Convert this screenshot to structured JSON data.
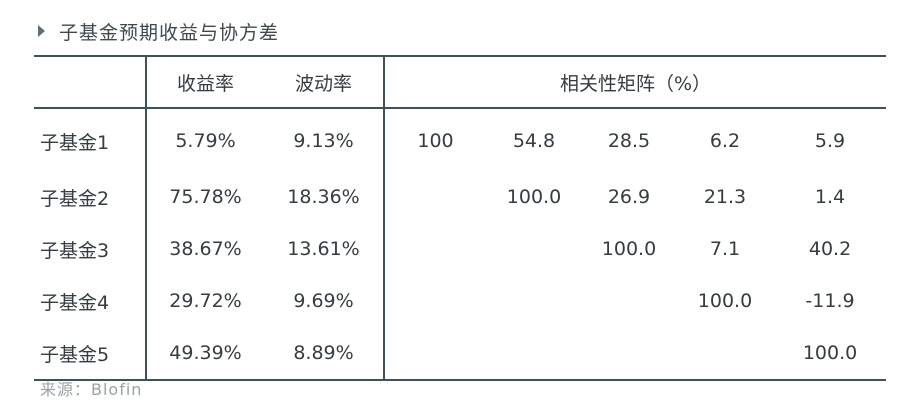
{
  "title": "子基金预期收益与协方差",
  "headers": {
    "returns": "收益率",
    "volatility": "波动率",
    "correlation": "相关性矩阵（%）"
  },
  "rows": [
    {
      "name": "子基金1",
      "ret": "5.79%",
      "vol": "9.13%",
      "corr": [
        "100",
        "54.8",
        "28.5",
        "6.2",
        "5.9"
      ]
    },
    {
      "name": "子基金2",
      "ret": "75.78%",
      "vol": "18.36%",
      "corr": [
        "",
        "100.0",
        "26.9",
        "21.3",
        "1.4"
      ]
    },
    {
      "name": "子基金3",
      "ret": "38.67%",
      "vol": "13.61%",
      "corr": [
        "",
        "",
        "100.0",
        "7.1",
        "40.2"
      ]
    },
    {
      "name": "子基金4",
      "ret": "29.72%",
      "vol": "9.69%",
      "corr": [
        "",
        "",
        "",
        "100.0",
        "-11.9"
      ]
    },
    {
      "name": "子基金5",
      "ret": "49.39%",
      "vol": "8.89%",
      "corr": [
        "",
        "",
        "",
        "",
        "100.0"
      ]
    }
  ],
  "source": "来源：Blofin"
}
